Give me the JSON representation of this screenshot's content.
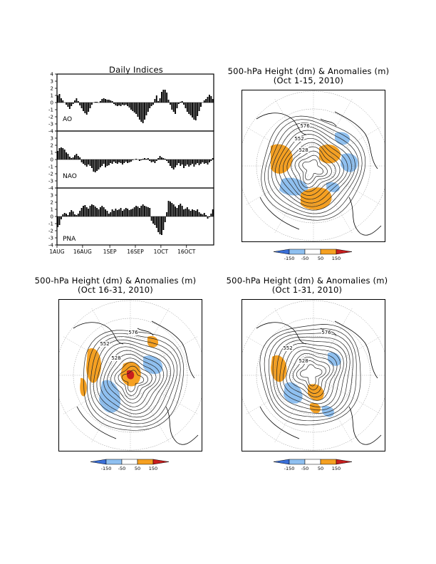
{
  "indices": {
    "title": "Daily Indices",
    "x_ticks": [
      "1AUG",
      "16AUG",
      "1SEP",
      "16SEP",
      "1OCT",
      "16OCT"
    ],
    "y_ticks": [
      "4",
      "3",
      "2",
      "1",
      "0",
      "-1",
      "-2",
      "-3",
      "-4"
    ]
  },
  "maps": [
    {
      "title_line1": "500-hPa Height (dm) & Anomalies (m)",
      "title_line2": "(Oct 1-15, 2010)"
    },
    {
      "title_line1": "500-hPa Height (dm) & Anomalies (m)",
      "title_line2": "(Oct 16-31, 2010)"
    },
    {
      "title_line1": "500-hPa Height (dm) & Anomalies (m)",
      "title_line2": "(Oct 1-31, 2010)"
    }
  ],
  "map_labels": [
    "576",
    "552",
    "528"
  ],
  "colorbar": {
    "labels": [
      "-150",
      "-50",
      "50",
      "150"
    ],
    "colors": [
      "#3a6fd8",
      "#8fc0f0",
      "#ffffff",
      "#f5a021",
      "#c81e1e"
    ]
  },
  "colors": {
    "positive_anomaly": "#f5a021",
    "negative_anomaly": "#8fc0f0"
  },
  "chart_data": [
    {
      "type": "bar",
      "title": "Daily Indices",
      "x_start": "1AUG",
      "x_end": "31OCT",
      "ylim": [
        -4,
        4
      ],
      "series": [
        {
          "name": "AO",
          "values": [
            1.0,
            1.2,
            0.6,
            0.3,
            0.0,
            -0.3,
            -0.6,
            -0.9,
            -0.5,
            -0.2,
            0.3,
            0.6,
            0.2,
            -0.4,
            -0.8,
            -1.2,
            -1.5,
            -1.7,
            -1.3,
            -0.8,
            -0.3,
            0.0,
            0.1,
            0.1,
            0.0,
            0.2,
            0.5,
            0.6,
            0.5,
            0.4,
            0.4,
            0.3,
            0.2,
            -0.2,
            -0.4,
            -0.5,
            -0.4,
            -0.5,
            -0.3,
            -0.4,
            -0.3,
            -0.5,
            -0.7,
            -1.0,
            -1.2,
            -1.4,
            -1.6,
            -2.0,
            -2.4,
            -2.7,
            -2.9,
            -2.4,
            -1.8,
            -1.3,
            -0.8,
            -0.5,
            -0.3,
            0.5,
            1.0,
            0.2,
            0.6,
            1.5,
            1.8,
            1.8,
            1.4,
            0.4,
            -0.3,
            -1.0,
            -1.3,
            -1.6,
            -0.8,
            -0.2,
            0.1,
            0.2,
            -0.3,
            -0.8,
            -1.3,
            -1.6,
            -1.8,
            -2.1,
            -2.4,
            -2.5,
            -1.9,
            -1.2,
            -0.6,
            0.0,
            0.3,
            0.5,
            0.8,
            1.1,
            0.9,
            0.5
          ]
        },
        {
          "name": "NAO",
          "values": [
            1.2,
            1.6,
            1.7,
            1.6,
            1.4,
            1.0,
            0.8,
            0.4,
            0.2,
            0.3,
            0.6,
            0.8,
            0.5,
            0.3,
            -0.4,
            -0.6,
            -0.8,
            -1.0,
            -0.7,
            -0.9,
            -1.2,
            -1.7,
            -1.8,
            -1.6,
            -1.4,
            -1.1,
            -0.9,
            -0.6,
            -1.1,
            -0.9,
            -0.8,
            -0.5,
            -0.6,
            -0.3,
            -0.5,
            -0.6,
            -0.4,
            -0.5,
            -0.7,
            -0.5,
            -0.3,
            -0.5,
            -0.4,
            -0.3,
            -0.1,
            0.0,
            0.1,
            0.0,
            -0.2,
            -0.1,
            0.1,
            0.2,
            0.1,
            0.2,
            -0.2,
            -0.4,
            -0.3,
            -0.5,
            -0.2,
            0.2,
            0.5,
            0.3,
            0.2,
            0.1,
            -0.2,
            -0.5,
            -0.9,
            -1.2,
            -1.4,
            -1.1,
            -0.8,
            -0.5,
            -0.9,
            -0.7,
            -1.2,
            -0.9,
            -0.7,
            -1.0,
            -0.8,
            -0.6,
            -1.0,
            -0.7,
            -0.5,
            -0.8,
            -0.6,
            -0.4,
            -0.6,
            -0.5,
            -0.7,
            -0.4,
            -0.2,
            0.2
          ]
        },
        {
          "name": "PNA",
          "values": [
            -1.5,
            -1.2,
            -0.4,
            0.3,
            0.5,
            0.4,
            0.2,
            0.6,
            0.9,
            0.7,
            0.3,
            0.2,
            0.4,
            0.8,
            1.2,
            1.5,
            1.6,
            1.3,
            1.1,
            1.5,
            1.7,
            1.6,
            1.4,
            1.2,
            1.0,
            1.3,
            1.5,
            1.3,
            1.0,
            0.8,
            0.4,
            0.6,
            1.0,
            0.8,
            1.1,
            0.9,
            1.0,
            1.2,
            0.8,
            1.0,
            1.2,
            1.1,
            0.9,
            1.0,
            1.1,
            1.3,
            1.5,
            1.4,
            1.2,
            1.5,
            1.7,
            1.5,
            1.4,
            1.3,
            1.2,
            -0.6,
            -1.0,
            -1.2,
            -1.6,
            -2.2,
            -2.5,
            -2.6,
            -1.9,
            -0.8,
            0.6,
            2.2,
            2.1,
            1.9,
            1.7,
            1.4,
            1.2,
            1.6,
            1.8,
            1.5,
            1.0,
            1.1,
            1.3,
            1.0,
            0.8,
            1.0,
            0.9,
            0.8,
            1.0,
            0.6,
            0.4,
            0.3,
            0.5,
            0.2,
            -0.3,
            -0.1,
            0.4,
            1.0
          ]
        }
      ]
    }
  ]
}
